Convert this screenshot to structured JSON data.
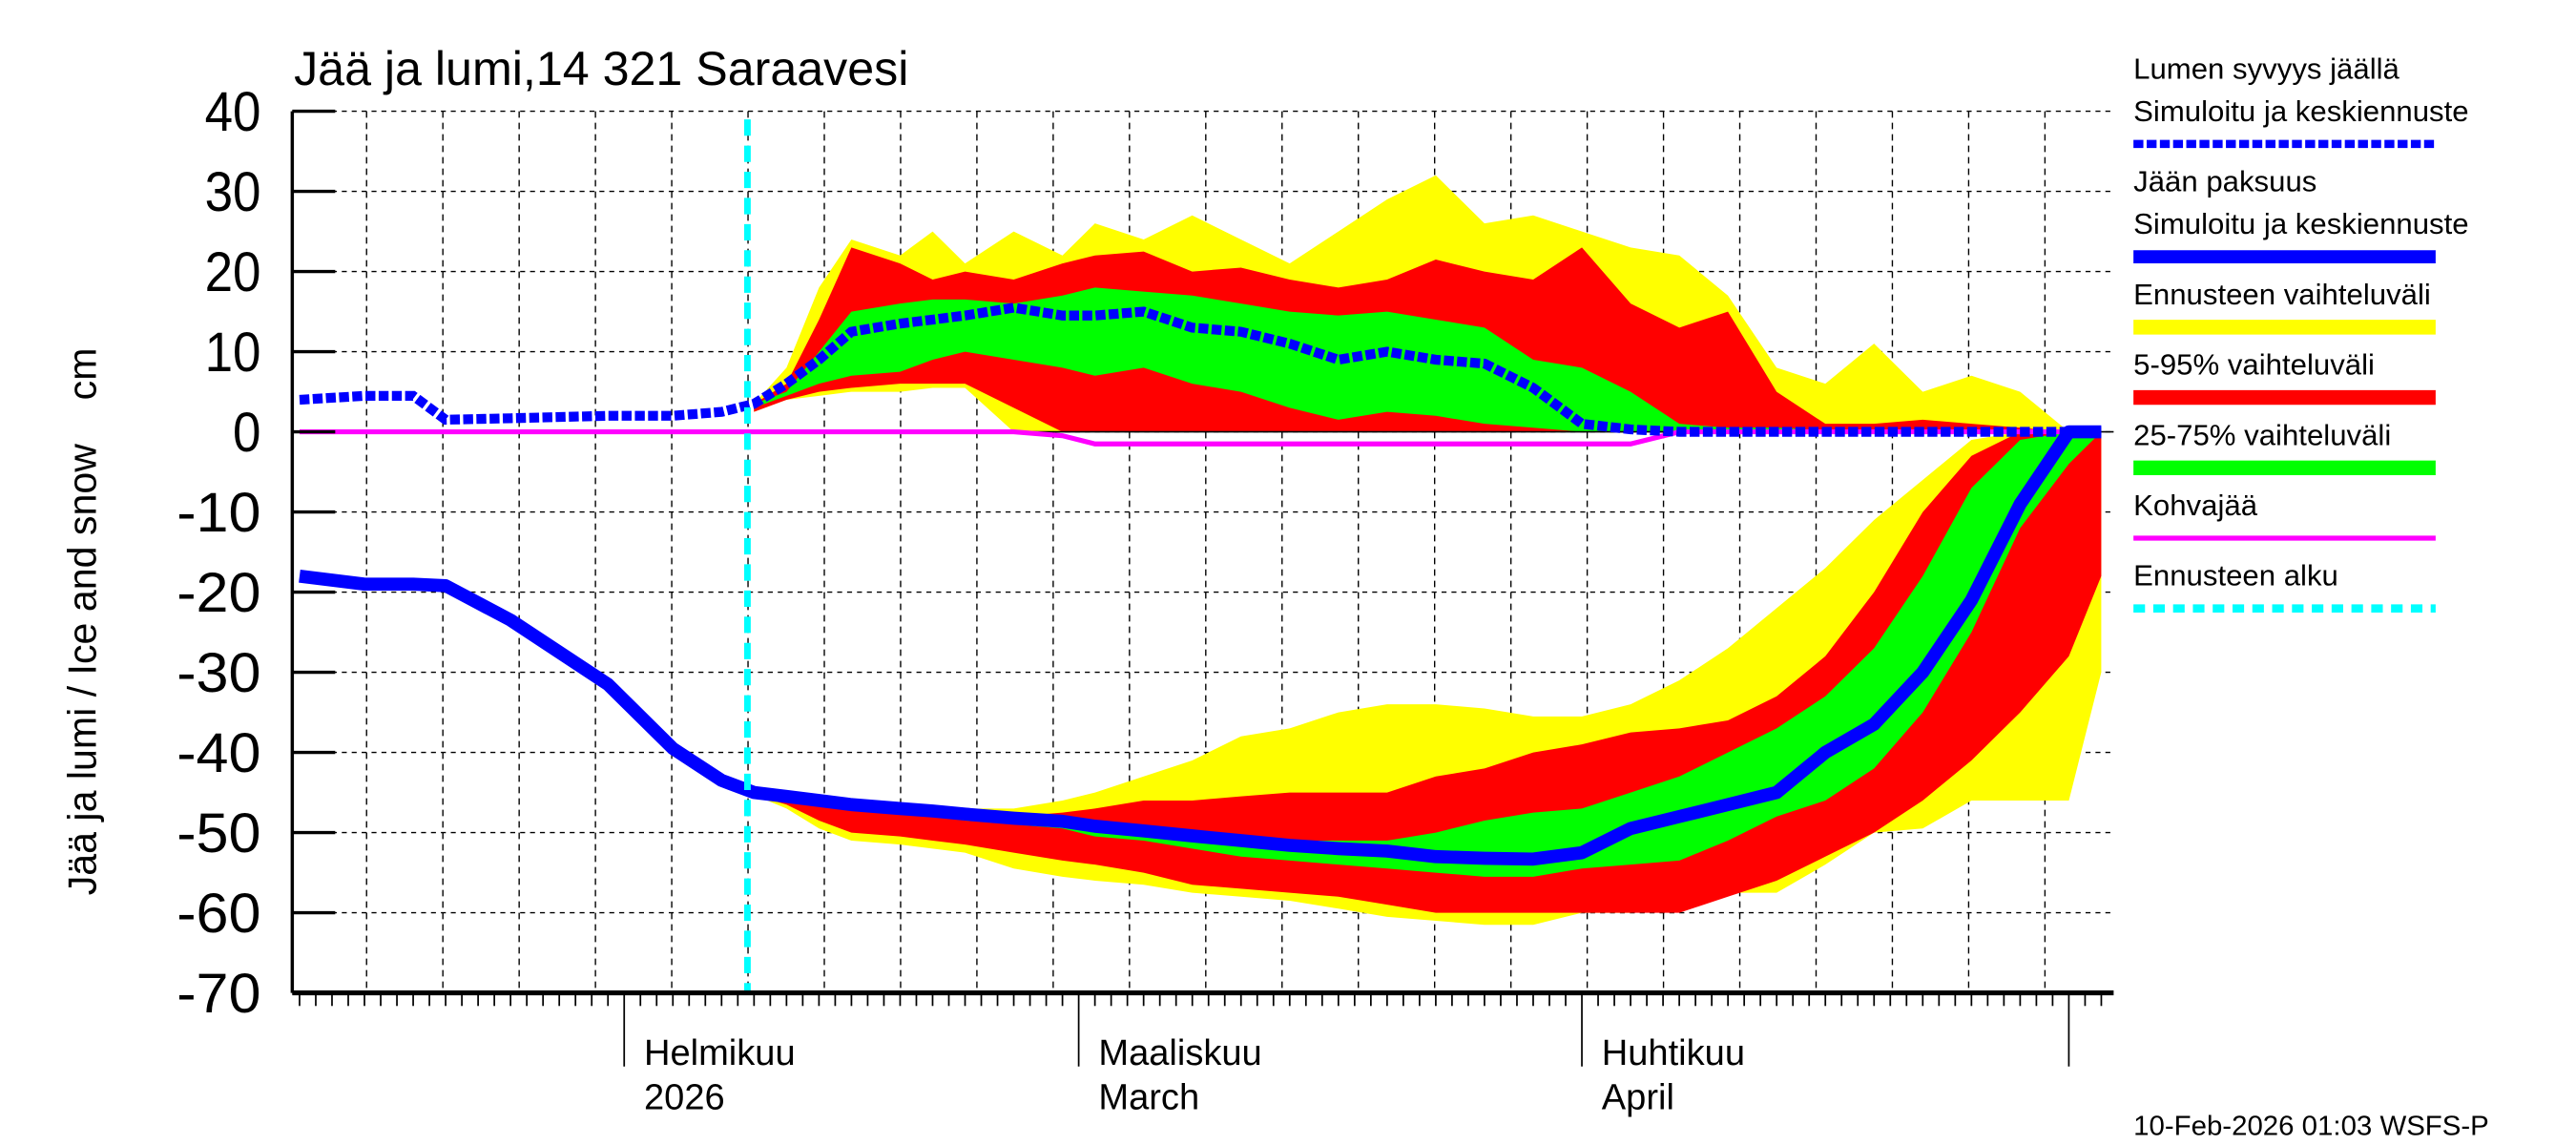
{
  "chart_data": {
    "type": "area",
    "title": "Jää ja lumi,14 321 Saraavesi",
    "ylabel": "Jää ja lumi / Ice and snow    cm",
    "ylim": [
      -70,
      40
    ],
    "yticks": [
      "40",
      "30",
      "20",
      "10",
      "0",
      "-10",
      "-20",
      "-30",
      "-40",
      "-50",
      "-60",
      "-70"
    ],
    "xlim": [
      "2026-01-12",
      "2026-05-03"
    ],
    "grid": true,
    "legend_position": "right",
    "x_month_labels": [
      {
        "date": "2026-02-01",
        "line1": "Helmikuu",
        "line2": "2026"
      },
      {
        "date": "2026-03-01",
        "line1": "Maaliskuu",
        "line2": "March"
      },
      {
        "date": "2026-04-01",
        "line1": "Huhtikuu",
        "line2": "April"
      }
    ],
    "forecast_start": "2026-02-09",
    "x": [
      "2026-01-12",
      "2026-01-16",
      "2026-01-19",
      "2026-01-21",
      "2026-01-25",
      "2026-01-31",
      "2026-02-04",
      "2026-02-07",
      "2026-02-09",
      "2026-02-11",
      "2026-02-13",
      "2026-02-15",
      "2026-02-18",
      "2026-02-20",
      "2026-02-22",
      "2026-02-25",
      "2026-02-28",
      "2026-03-02",
      "2026-03-05",
      "2026-03-08",
      "2026-03-11",
      "2026-03-14",
      "2026-03-17",
      "2026-03-20",
      "2026-03-23",
      "2026-03-26",
      "2026-03-29",
      "2026-04-01",
      "2026-04-04",
      "2026-04-07",
      "2026-04-10",
      "2026-04-13",
      "2026-04-16",
      "2026-04-19",
      "2026-04-22",
      "2026-04-25",
      "2026-04-28",
      "2026-05-01",
      "2026-05-03"
    ],
    "series": {
      "snow_depth": [
        4,
        4.5,
        4.5,
        1.5,
        1.7,
        2,
        2,
        2.5,
        3.5,
        6,
        9,
        12.5,
        13.5,
        14,
        14.5,
        15.5,
        14.5,
        14.5,
        15,
        13,
        12.5,
        11,
        9,
        10,
        9,
        8.5,
        5.5,
        1,
        0.3,
        0,
        0,
        0,
        0,
        0,
        0,
        0,
        0,
        0,
        0
      ],
      "ice_thickness": [
        -18,
        -19,
        -19,
        -19.2,
        -23.5,
        -31.5,
        -39.5,
        -43.5,
        -45,
        -45.5,
        -46,
        -46.5,
        -47,
        -47.3,
        -47.7,
        -48.2,
        -48.6,
        -49.2,
        -49.8,
        -50.4,
        -51,
        -51.6,
        -52,
        -52.3,
        -53,
        -53.2,
        -53.3,
        -52.5,
        -49.5,
        -48,
        -46.5,
        -45,
        -40,
        -36.5,
        -30,
        -21,
        -9,
        0,
        0
      ],
      "slush_ice": [
        0,
        0,
        0,
        0,
        0,
        0,
        0,
        0,
        0,
        0,
        0,
        0,
        0,
        0,
        0,
        0,
        -0.5,
        -1.5,
        -1.5,
        -1.5,
        -1.5,
        -1.5,
        -1.5,
        -1.5,
        -1.5,
        -1.5,
        -1.5,
        -1.5,
        -1.5,
        0,
        0,
        0,
        0,
        0,
        0,
        0,
        0,
        0,
        0
      ]
    },
    "bands": {
      "snow": {
        "range_max": [
          null,
          null,
          null,
          null,
          null,
          null,
          null,
          null,
          3.5,
          8,
          18,
          24,
          22,
          25,
          21,
          25,
          22,
          26,
          24,
          27,
          24,
          21,
          25,
          29,
          32,
          26,
          27,
          25,
          23,
          22,
          17,
          8,
          6,
          11,
          5,
          7,
          5,
          0,
          0
        ],
        "range_min": [
          null,
          null,
          null,
          null,
          null,
          null,
          null,
          null,
          2.5,
          4,
          4.5,
          5,
          5,
          5.5,
          5.5,
          0,
          0,
          0,
          0,
          0,
          0,
          0,
          0,
          0,
          0,
          0,
          0,
          0,
          0,
          0,
          0,
          0,
          0,
          0,
          0,
          0,
          0,
          0,
          0
        ],
        "p95": [
          null,
          null,
          null,
          null,
          null,
          null,
          null,
          null,
          3.5,
          6,
          14,
          23,
          21,
          19,
          20,
          19,
          21,
          22,
          22.5,
          20,
          20.5,
          19,
          18,
          19,
          21.5,
          20,
          19,
          23,
          16,
          13,
          15,
          5,
          1,
          1,
          1.5,
          1,
          0.5,
          0,
          0
        ],
        "p5": [
          null,
          null,
          null,
          null,
          null,
          null,
          null,
          null,
          2.5,
          4,
          5,
          5.5,
          6,
          6,
          6,
          3,
          0,
          0,
          0,
          0,
          0,
          0,
          0,
          0,
          0,
          0,
          0,
          0,
          0,
          0,
          0,
          0,
          0,
          0,
          0,
          0,
          0,
          0,
          0
        ],
        "p75": [
          null,
          null,
          null,
          null,
          null,
          null,
          null,
          null,
          3.5,
          5,
          10,
          15,
          16,
          16.5,
          16.5,
          16,
          17,
          18,
          17.5,
          17,
          16,
          15,
          14.5,
          15,
          14,
          13,
          9,
          8,
          5,
          1,
          0.5,
          0.5,
          0.2,
          0,
          0,
          0,
          0,
          0,
          0
        ],
        "p25": [
          null,
          null,
          null,
          null,
          null,
          null,
          null,
          null,
          3,
          4.5,
          6,
          7,
          7.5,
          9,
          10,
          9,
          8,
          7,
          8,
          6,
          5,
          3,
          1.5,
          2.5,
          2,
          1,
          0.5,
          0,
          0,
          0,
          0,
          0,
          0,
          0,
          0,
          0,
          0,
          0,
          0
        ]
      },
      "ice": {
        "range_max": [
          null,
          null,
          null,
          null,
          null,
          null,
          null,
          null,
          -45,
          -45.5,
          -46,
          -46.5,
          -47,
          -47,
          -47,
          -47,
          -46,
          -45,
          -43,
          -41,
          -38,
          -37,
          -35,
          -34,
          -34,
          -34.5,
          -35.5,
          -35.5,
          -34,
          -31,
          -27,
          -22,
          -17,
          -11,
          -6,
          -1,
          0,
          0,
          0
        ],
        "range_min": [
          null,
          null,
          null,
          null,
          null,
          null,
          null,
          null,
          -45.3,
          -47,
          -49.5,
          -51,
          -51.5,
          -52,
          -52.5,
          -54.5,
          -55.5,
          -56,
          -56.5,
          -57.5,
          -58,
          -58.5,
          -59.5,
          -60.5,
          -61,
          -61.5,
          -61.5,
          -60,
          -60,
          -59.5,
          -57.5,
          -57.5,
          -54,
          -50,
          -49.5,
          -46,
          -46,
          -46,
          -30
        ],
        "p95": [
          null,
          null,
          null,
          null,
          null,
          null,
          null,
          null,
          -45,
          -45.5,
          -46,
          -46.5,
          -47,
          -47.5,
          -48,
          -48,
          -47.5,
          -47,
          -46,
          -46,
          -45.5,
          -45,
          -45,
          -45,
          -43,
          -42,
          -40,
          -39,
          -37.5,
          -37,
          -36,
          -33,
          -28,
          -20,
          -10,
          -3,
          0,
          0,
          0
        ],
        "p5": [
          null,
          null,
          null,
          null,
          null,
          null,
          null,
          null,
          -45.3,
          -46.5,
          -48.5,
          -50,
          -50.5,
          -51,
          -51.5,
          -52.5,
          -53.5,
          -54,
          -55,
          -56.5,
          -57,
          -57.5,
          -58,
          -59,
          -60,
          -60,
          -60,
          -60,
          -60,
          -60,
          -58,
          -56,
          -53,
          -50,
          -46,
          -41,
          -35,
          -28,
          -18
        ],
        "p75": [
          null,
          null,
          null,
          null,
          null,
          null,
          null,
          null,
          -45,
          -45.5,
          -46,
          -46.5,
          -47,
          -47.3,
          -47.7,
          -48,
          -48.5,
          -49,
          -49.5,
          -50,
          -50.5,
          -51,
          -51,
          -51,
          -50,
          -48.5,
          -47.5,
          -47,
          -45,
          -43,
          -40,
          -37,
          -33,
          -27,
          -18,
          -7,
          -1,
          0,
          0
        ],
        "p25": [
          null,
          null,
          null,
          null,
          null,
          null,
          null,
          null,
          -45.2,
          -46,
          -46.5,
          -47,
          -47.5,
          -48,
          -48.5,
          -49,
          -49.5,
          -50.5,
          -51,
          -52,
          -53,
          -53.5,
          -54,
          -54.5,
          -55,
          -55.5,
          -55.5,
          -54.5,
          -54,
          -53.5,
          -51,
          -48,
          -46,
          -42,
          -35,
          -25,
          -12,
          -4,
          0
        ]
      }
    },
    "colors": {
      "snow": "#0000ff",
      "ice": "#0000ff",
      "range": "#ffff00",
      "p5_95": "#ff0000",
      "p25_75": "#00ff00",
      "slush": "#ff00ff",
      "forecast_start": "#00ffff"
    },
    "legend": [
      {
        "line1": "Lumen syvyys jäällä",
        "line2": "Simuloitu ja keskiennuste",
        "style": "dashed-blue"
      },
      {
        "line1": "Jään paksuus",
        "line2": "Simuloitu ja keskiennuste",
        "style": "solid-blue"
      },
      {
        "line1": "Ennusteen vaihteluväli",
        "style": "yellow-bar"
      },
      {
        "line1": "5-95% vaihteluväli",
        "style": "red-bar"
      },
      {
        "line1": "25-75% vaihteluväli",
        "style": "green-bar"
      },
      {
        "line1": "Kohvajää",
        "style": "magenta-line"
      },
      {
        "line1": "Ennusteen alku",
        "style": "cyan-dashed"
      }
    ],
    "footer": "10-Feb-2026 01:03 WSFS-P"
  }
}
